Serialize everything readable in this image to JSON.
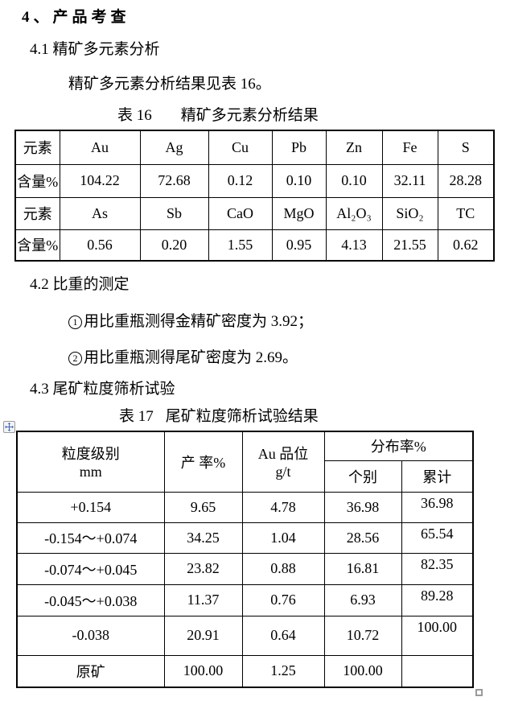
{
  "page": {
    "heading": "4、产品考查",
    "sections": {
      "s41": {
        "title": "4.1 精矿多元素分析",
        "body": "精矿多元素分析结果见表 16。"
      },
      "s42": {
        "title": "4.2 比重的测定",
        "items": [
          {
            "bullet": "1",
            "text": "用比重瓶测得金精矿密度为 3.92；"
          },
          {
            "bullet": "2",
            "text": "用比重瓶测得尾矿密度为 2.69。"
          }
        ]
      },
      "s43": {
        "title": "4.3 尾矿粒度筛析试验"
      }
    }
  },
  "table16": {
    "caption": {
      "label": "表 16",
      "title": "精矿多元素分析结果"
    },
    "rows": [
      [
        "元素",
        "Au",
        "Ag",
        "Cu",
        "Pb",
        "Zn",
        "Fe",
        "S"
      ],
      [
        "含量%",
        "104.22",
        "72.68",
        "0.12",
        "0.10",
        "0.10",
        "32.11",
        "28.28"
      ],
      [
        "元素",
        "As",
        "Sb",
        "CaO",
        "MgO",
        "Al₂O₃",
        "SiO₂",
        "TC"
      ],
      [
        "含量%",
        "0.56",
        "0.20",
        "1.55",
        "0.95",
        "4.13",
        "21.55",
        "0.62"
      ]
    ]
  },
  "table17": {
    "caption": {
      "label": "表 17",
      "title": "尾矿粒度筛析试验结果"
    },
    "header": {
      "size_class_line1": "粒度级别",
      "size_class_line2": "mm",
      "yield": "产 率%",
      "grade_line1": "Au 品位",
      "grade_line2": "g/t",
      "distribution": "分布率%",
      "individual": "个别",
      "cumulative": "累计"
    },
    "rows": [
      [
        "+0.154",
        "9.65",
        "4.78",
        "36.98",
        "36.98"
      ],
      [
        "-0.154～+0.074",
        "34.25",
        "1.04",
        "28.56",
        "65.54"
      ],
      [
        "-0.074～+0.045",
        "23.82",
        "0.88",
        "16.81",
        "82.35"
      ],
      [
        "-0.045～+0.038",
        "11.37",
        "0.76",
        "6.93",
        "89.28"
      ],
      [
        "-0.038",
        "20.91",
        "0.64",
        "10.72",
        "100.00"
      ],
      [
        "原矿",
        "100.00",
        "1.25",
        "100.00",
        ""
      ]
    ]
  },
  "colors": {
    "text": "#000000",
    "table_border": "#000000",
    "handle_arrow_blue": "#3a66c0",
    "handle_border_gray": "#9a9a9a"
  },
  "icons": {
    "move_handle": "move-cross-arrows",
    "resize_handle": "resize-square"
  }
}
